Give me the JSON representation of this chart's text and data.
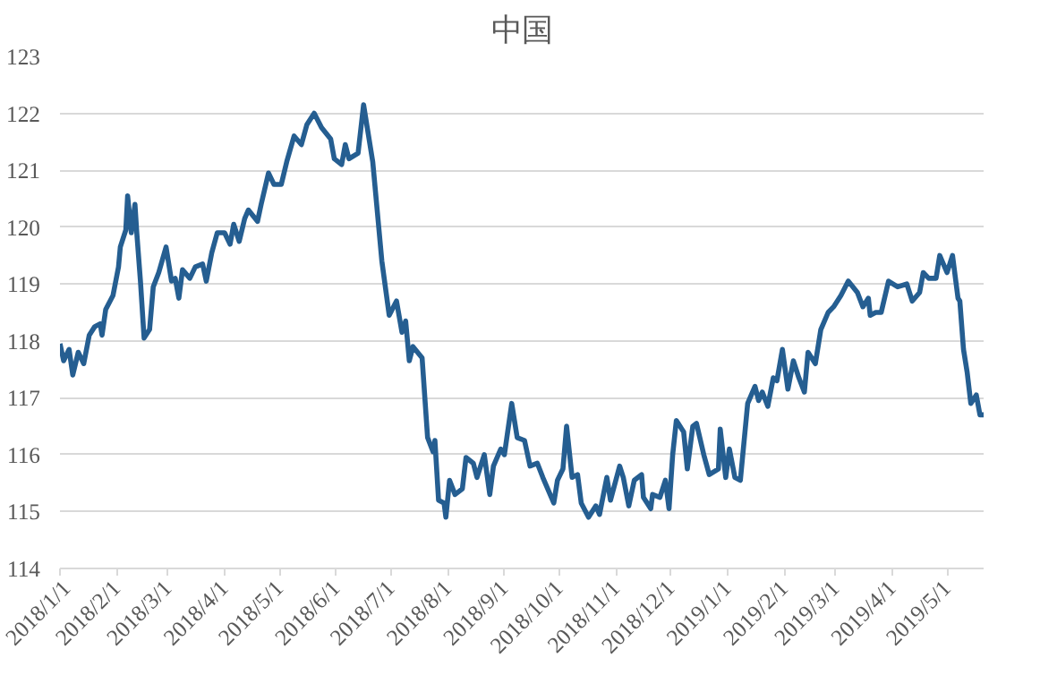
{
  "chart_data": {
    "type": "line",
    "title": "中国",
    "x": [
      "2018-01-01",
      "2018-01-03",
      "2018-01-06",
      "2018-01-08",
      "2018-01-11",
      "2018-01-14",
      "2018-01-17",
      "2018-01-20",
      "2018-01-23",
      "2018-01-24",
      "2018-01-26",
      "2018-01-30",
      "2018-02-02",
      "2018-02-03",
      "2018-02-06",
      "2018-02-07",
      "2018-02-09",
      "2018-02-11",
      "2018-02-12",
      "2018-02-14",
      "2018-02-16",
      "2018-02-19",
      "2018-02-21",
      "2018-02-24",
      "2018-02-28",
      "2018-03-03",
      "2018-03-05",
      "2018-03-07",
      "2018-03-09",
      "2018-03-13",
      "2018-03-16",
      "2018-03-20",
      "2018-03-22",
      "2018-03-25",
      "2018-03-28",
      "2018-04-01",
      "2018-04-04",
      "2018-04-06",
      "2018-04-09",
      "2018-04-12",
      "2018-04-14",
      "2018-04-19",
      "2018-04-21",
      "2018-04-25",
      "2018-04-28",
      "2018-05-02",
      "2018-05-05",
      "2018-05-09",
      "2018-05-13",
      "2018-05-16",
      "2018-05-20",
      "2018-05-24",
      "2018-05-29",
      "2018-05-31",
      "2018-06-04",
      "2018-06-06",
      "2018-06-08",
      "2018-06-13",
      "2018-06-16",
      "2018-06-18",
      "2018-06-21",
      "2018-06-26",
      "2018-06-30",
      "2018-07-04",
      "2018-07-07",
      "2018-07-09",
      "2018-07-11",
      "2018-07-13",
      "2018-07-18",
      "2018-07-21",
      "2018-07-24",
      "2018-07-25",
      "2018-07-27",
      "2018-07-30",
      "2018-07-31",
      "2018-08-02",
      "2018-08-05",
      "2018-08-09",
      "2018-08-11",
      "2018-08-15",
      "2018-08-17",
      "2018-08-21",
      "2018-08-24",
      "2018-08-26",
      "2018-08-30",
      "2018-09-01",
      "2018-09-05",
      "2018-09-08",
      "2018-09-12",
      "2018-09-15",
      "2018-09-19",
      "2018-09-22",
      "2018-09-28",
      "2018-09-30",
      "2018-10-03",
      "2018-10-05",
      "2018-10-08",
      "2018-10-11",
      "2018-10-13",
      "2018-10-17",
      "2018-10-21",
      "2018-10-23",
      "2018-10-27",
      "2018-10-29",
      "2018-11-03",
      "2018-11-05",
      "2018-11-08",
      "2018-11-11",
      "2018-11-15",
      "2018-11-16",
      "2018-11-20",
      "2018-11-21",
      "2018-11-25",
      "2018-11-28",
      "2018-11-30",
      "2018-12-02",
      "2018-12-04",
      "2018-12-08",
      "2018-12-10",
      "2018-12-13",
      "2018-12-15",
      "2018-12-19",
      "2018-12-22",
      "2018-12-27",
      "2018-12-28",
      "2018-12-31",
      "2019-01-02",
      "2019-01-05",
      "2019-01-08",
      "2019-01-12",
      "2019-01-16",
      "2019-01-18",
      "2019-01-20",
      "2019-01-23",
      "2019-01-26",
      "2019-01-28",
      "2019-01-31",
      "2019-02-03",
      "2019-02-06",
      "2019-02-09",
      "2019-02-12",
      "2019-02-14",
      "2019-02-18",
      "2019-02-21",
      "2019-02-25",
      "2019-02-28",
      "2019-03-04",
      "2019-03-08",
      "2019-03-13",
      "2019-03-16",
      "2019-03-19",
      "2019-03-20",
      "2019-03-23",
      "2019-03-26",
      "2019-03-30",
      "2019-04-04",
      "2019-04-09",
      "2019-04-12",
      "2019-04-16",
      "2019-04-18",
      "2019-04-21",
      "2019-04-25",
      "2019-04-27",
      "2019-05-01",
      "2019-05-04",
      "2019-05-07",
      "2019-05-08",
      "2019-05-10",
      "2019-05-12",
      "2019-05-14",
      "2019-05-17",
      "2019-05-19",
      "2019-05-21"
    ],
    "series": [
      {
        "color": "#255e91",
        "values": [
          117.95,
          117.65,
          117.85,
          117.4,
          117.8,
          117.6,
          118.1,
          118.25,
          118.3,
          118.1,
          118.55,
          118.8,
          119.3,
          119.65,
          119.95,
          120.55,
          119.9,
          120.4,
          119.9,
          119.05,
          118.05,
          118.2,
          118.95,
          119.2,
          119.65,
          119.05,
          119.1,
          118.75,
          119.25,
          119.1,
          119.3,
          119.35,
          119.05,
          119.55,
          119.9,
          119.9,
          119.7,
          120.05,
          119.75,
          120.15,
          120.3,
          120.1,
          120.4,
          120.95,
          120.75,
          120.75,
          121.15,
          121.6,
          121.45,
          121.8,
          122.0,
          121.75,
          121.55,
          121.2,
          121.1,
          121.45,
          121.2,
          121.3,
          122.15,
          121.75,
          121.15,
          119.4,
          118.45,
          118.7,
          118.15,
          118.35,
          117.65,
          117.9,
          117.7,
          116.3,
          116.05,
          116.25,
          115.2,
          115.15,
          114.9,
          115.55,
          115.3,
          115.4,
          115.95,
          115.85,
          115.6,
          116.0,
          115.3,
          115.8,
          116.1,
          116.0,
          116.9,
          116.3,
          116.25,
          115.8,
          115.85,
          115.6,
          115.15,
          115.55,
          115.75,
          116.5,
          115.6,
          115.65,
          115.15,
          114.9,
          115.1,
          114.95,
          115.6,
          115.2,
          115.8,
          115.6,
          115.1,
          115.55,
          115.65,
          115.25,
          115.05,
          115.3,
          115.25,
          115.55,
          115.05,
          116.0,
          116.6,
          116.4,
          115.75,
          116.5,
          116.55,
          116.0,
          115.65,
          115.75,
          116.45,
          115.6,
          116.1,
          115.6,
          115.55,
          116.9,
          117.2,
          116.95,
          117.1,
          116.85,
          117.35,
          117.3,
          117.85,
          117.15,
          117.65,
          117.35,
          117.1,
          117.8,
          117.6,
          118.2,
          118.5,
          118.6,
          118.8,
          119.05,
          118.85,
          118.6,
          118.75,
          118.45,
          118.5,
          118.5,
          119.05,
          118.95,
          119.0,
          118.7,
          118.85,
          119.2,
          119.1,
          119.1,
          119.5,
          119.2,
          119.5,
          118.75,
          118.7,
          117.85,
          117.45,
          116.9,
          117.05,
          116.7,
          116.7
        ]
      }
    ],
    "xlim": [
      "2018-01-01",
      "2019-05-21"
    ],
    "xticks": [
      {
        "value": "2018-01-01",
        "label": "2018/1/1"
      },
      {
        "value": "2018-02-01",
        "label": "2018/2/1"
      },
      {
        "value": "2018-03-01",
        "label": "2018/3/1"
      },
      {
        "value": "2018-04-01",
        "label": "2018/4/1"
      },
      {
        "value": "2018-05-01",
        "label": "2018/5/1"
      },
      {
        "value": "2018-06-01",
        "label": "2018/6/1"
      },
      {
        "value": "2018-07-01",
        "label": "2018/7/1"
      },
      {
        "value": "2018-08-01",
        "label": "2018/8/1"
      },
      {
        "value": "2018-09-01",
        "label": "2018/9/1"
      },
      {
        "value": "2018-10-01",
        "label": "2018/10/1"
      },
      {
        "value": "2018-11-01",
        "label": "2018/11/1"
      },
      {
        "value": "2018-12-01",
        "label": "2018/12/1"
      },
      {
        "value": "2019-01-01",
        "label": "2019/1/1"
      },
      {
        "value": "2019-02-01",
        "label": "2019/2/1"
      },
      {
        "value": "2019-03-01",
        "label": "2019/3/1"
      },
      {
        "value": "2019-04-01",
        "label": "2019/4/1"
      },
      {
        "value": "2019-05-01",
        "label": "2019/5/1"
      }
    ],
    "ylim": [
      114,
      123
    ],
    "yticks": [
      114,
      115,
      116,
      117,
      118,
      119,
      120,
      121,
      122,
      123
    ],
    "grid": "y"
  }
}
